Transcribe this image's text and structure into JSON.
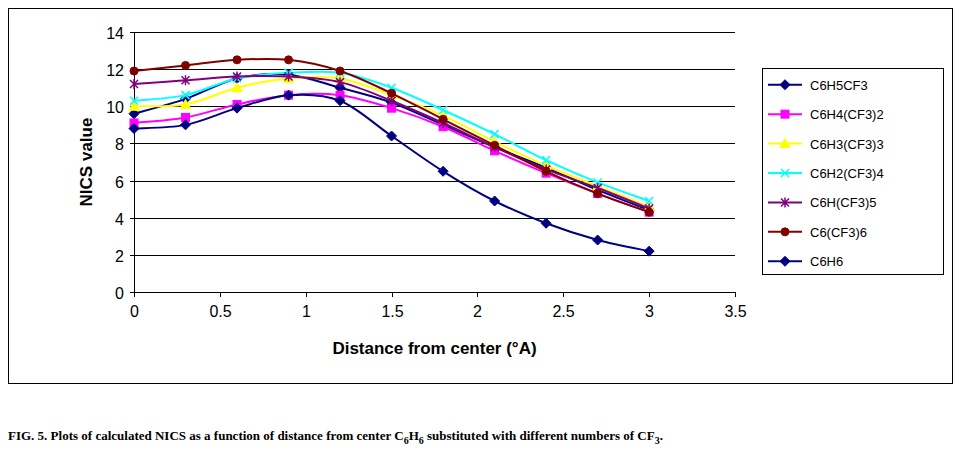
{
  "chart_data": {
    "type": "line",
    "caption": "FIG. 5. Plots of calculated NICS as a function of distance from center C6H6 substituted with different numbers of CF3.",
    "x_label": "Distance from center (°A)",
    "y_label": "NICS value",
    "x": [
      0,
      0.3,
      0.6,
      0.9,
      1.2,
      1.5,
      1.8,
      2.1,
      2.4,
      2.7,
      3.0
    ],
    "xlim": [
      0,
      3.5
    ],
    "xticks": [
      0,
      0.5,
      1,
      1.5,
      2,
      2.5,
      3,
      3.5
    ],
    "ylim": [
      0,
      14
    ],
    "yticks": [
      0,
      2,
      4,
      6,
      8,
      10,
      12,
      14
    ],
    "grid": true,
    "legend": "right",
    "series": [
      {
        "name": "C6H5CF3",
        "color": "#000080",
        "marker": "diamond",
        "values": [
          9.6,
          10.4,
          11.5,
          11.7,
          11.0,
          10.2,
          9.0,
          7.8,
          6.7,
          5.5,
          4.4
        ]
      },
      {
        "name": "C6H4(CF3)2",
        "color": "#ff00ff",
        "marker": "square",
        "values": [
          9.1,
          9.4,
          10.1,
          10.6,
          10.6,
          9.9,
          8.9,
          7.6,
          6.4,
          5.3,
          4.3
        ]
      },
      {
        "name": "C6H3(CF3)3",
        "color": "#ffff00",
        "marker": "triangle",
        "values": [
          10.0,
          10.1,
          11.0,
          11.5,
          11.5,
          10.6,
          9.5,
          8.1,
          6.8,
          5.7,
          4.6
        ]
      },
      {
        "name": "C6H2(CF3)4",
        "color": "#00ffff",
        "marker": "x",
        "values": [
          10.3,
          10.6,
          11.5,
          11.8,
          11.8,
          11.0,
          9.8,
          8.5,
          7.1,
          5.9,
          4.9
        ]
      },
      {
        "name": "C6H(CF3)5",
        "color": "#800080",
        "marker": "star",
        "values": [
          11.2,
          11.4,
          11.6,
          11.6,
          11.3,
          10.3,
          9.1,
          7.8,
          6.6,
          5.6,
          4.5
        ]
      },
      {
        "name": "C6(CF3)6",
        "color": "#800000",
        "marker": "circle",
        "values": [
          11.9,
          12.2,
          12.5,
          12.5,
          11.9,
          10.7,
          9.3,
          7.9,
          6.5,
          5.3,
          4.3
        ]
      },
      {
        "name": "C6H6",
        "color": "#000080",
        "marker": "diamond",
        "values": [
          8.8,
          9.0,
          9.9,
          10.6,
          10.3,
          8.4,
          6.5,
          4.9,
          3.7,
          2.8,
          2.2
        ]
      }
    ]
  }
}
